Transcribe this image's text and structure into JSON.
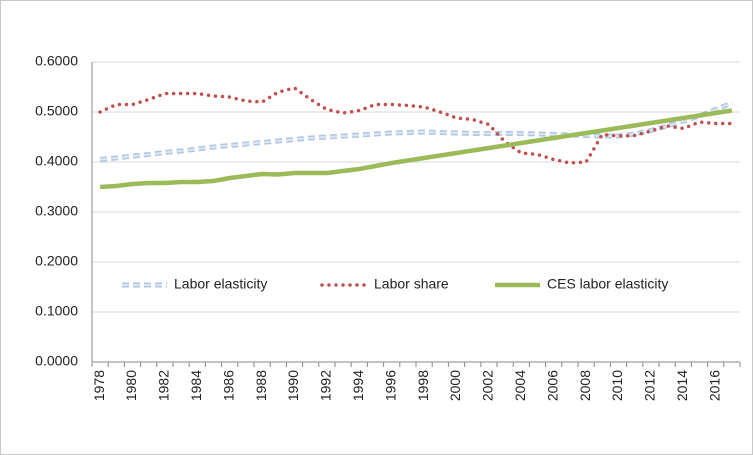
{
  "chart_data": {
    "type": "line",
    "categories": [
      "1978",
      null,
      "1980",
      null,
      "1982",
      null,
      "1984",
      null,
      "1986",
      null,
      "1988",
      null,
      "1990",
      null,
      "1992",
      null,
      "1994",
      null,
      "1996",
      null,
      "1998",
      null,
      "2000",
      null,
      "2002",
      null,
      "2004",
      null,
      "2006",
      null,
      "2008",
      null,
      "2010",
      null,
      "2012",
      null,
      "2014",
      null,
      "2016",
      null
    ],
    "series": [
      {
        "name": "Labor elasticity",
        "color": "#4f81bd",
        "values": [
          0.405,
          0.408,
          0.412,
          0.415,
          0.419,
          0.422,
          0.426,
          0.43,
          0.433,
          0.436,
          0.439,
          0.442,
          0.445,
          0.448,
          0.45,
          0.452,
          0.454,
          0.456,
          0.458,
          0.459,
          0.46,
          0.459,
          0.458,
          0.457,
          0.457,
          0.457,
          0.457,
          0.456,
          0.455,
          0.454,
          0.453,
          0.452,
          0.452,
          0.456,
          0.463,
          0.472,
          0.482,
          0.492,
          0.505,
          0.518
        ]
      },
      {
        "name": "Labor share",
        "color": "#c0504d",
        "values": [
          0.5,
          0.515,
          0.515,
          0.525,
          0.537,
          0.537,
          0.537,
          0.532,
          0.53,
          0.522,
          0.52,
          0.54,
          0.548,
          0.525,
          0.505,
          0.498,
          0.503,
          0.515,
          0.515,
          0.513,
          0.51,
          0.5,
          0.488,
          0.485,
          0.475,
          0.44,
          0.418,
          0.415,
          0.405,
          0.398,
          0.4,
          0.455,
          0.452,
          0.453,
          0.462,
          0.472,
          0.467,
          0.48,
          0.477,
          0.477
        ]
      },
      {
        "name": "CES labor elasticity",
        "color": "#9bbb59",
        "values": [
          0.35,
          0.352,
          0.356,
          0.358,
          0.358,
          0.36,
          0.36,
          0.362,
          0.368,
          0.372,
          0.376,
          0.375,
          0.378,
          0.378,
          0.378,
          0.382,
          0.386,
          0.392,
          0.398,
          0.403,
          0.408,
          0.413,
          0.418,
          0.423,
          0.428,
          0.433,
          0.438,
          0.443,
          0.448,
          0.453,
          0.458,
          0.463,
          0.468,
          0.473,
          0.478,
          0.483,
          0.488,
          0.493,
          0.498,
          0.503
        ]
      }
    ],
    "ylim": [
      0,
      0.6
    ],
    "yticks": [
      {
        "value": 0,
        "label": "0.0000"
      },
      {
        "value": 0.1,
        "label": "0.1000"
      },
      {
        "value": 0.2,
        "label": "0.2000"
      },
      {
        "value": 0.3,
        "label": "0.3000"
      },
      {
        "value": 0.4,
        "label": "0.4000"
      },
      {
        "value": 0.5,
        "label": "0.5000"
      },
      {
        "value": 0.6,
        "label": "0.6000"
      }
    ],
    "grid": true
  }
}
